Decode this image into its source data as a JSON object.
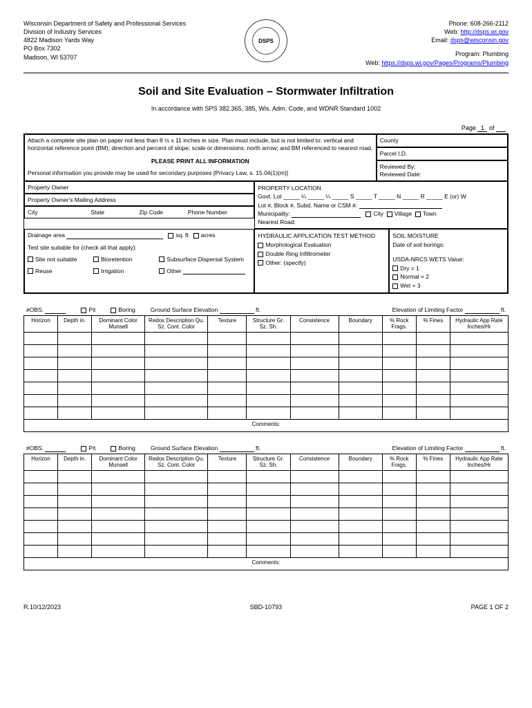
{
  "header": {
    "left": {
      "line1": "Wisconsin Department of Safety and Professional Services",
      "line2": "Division of Industry Services",
      "line3": "4822 Madison Yards Way",
      "line4": "PO Box 7302",
      "line5": "Madison, WI 53707"
    },
    "seal_text": "DSPS",
    "right": {
      "phone_label": "Phone: ",
      "phone": "608-266-2112",
      "web_label": "Web: ",
      "web_url": "http://dsps.wi.gov",
      "email_label": "Email: ",
      "email": "dsps@wisconsin.gov",
      "program_label": "Program: ",
      "program": "Plumbing",
      "program_web_label": "Web: ",
      "program_web_url": "https://dsps.wi.gov/Pages/Programs/Plumbing"
    }
  },
  "title": "Soil and Site Evaluation – Stormwater Infiltration",
  "subtitle": "In accordance with SPS 382.365, 385, Wis. Adm. Code, and WDNR Standard 1002",
  "page_row": {
    "prefix": "Page",
    "current": "1",
    "of": "of"
  },
  "form": {
    "attach_text": "Attach a complete site plan on paper not less than 8 ½ x 11 inches in size. Plan must include, but is not limited to: vertical and horizontal reference point (BM); direction and percent of slope; scale or dimensions; north arrow; and BM referenced to nearest road.",
    "print_bold": "PLEASE PRINT ALL INFORMATION",
    "privacy": "Personal information you provide may be used for secondary purposes [Privacy Law, s. 15.04(1)(m)]",
    "county": "County",
    "parcel": "Parcel I.D.",
    "reviewed_by": "Reviewed By:",
    "reviewed_date": "Reviewed Date:",
    "property_owner": "Property Owner",
    "mailing": "Property Owner's Mailing Address",
    "city": "City",
    "state": "State",
    "zip": "Zip Code",
    "phone": "Phone Number",
    "proploc_title": "PROPERTY LOCATION",
    "govt_lot": "Govt. Lot _____ ¼ _____ ¼ _____ S _____ T _____ N _____ R _____ E (or) W",
    "lot_block": "Lot #, Block #, Subd. Name or CSM #:",
    "municipality": "Municipality:",
    "mun_city": "City",
    "mun_village": "Village",
    "mun_town": "Town",
    "nearest_road": "Nearest Road:",
    "drainage": "Drainage area",
    "sqft": "sq. ft",
    "acres": "acres",
    "suitable": "Test site suitable for (check all that apply):",
    "not_suitable": "Site not suitable",
    "bioretention": "Bioretention",
    "subsurface": "Subsurface Dispersal System",
    "reuse": "Reuse",
    "irrigation": "Irrigation",
    "other": "Other",
    "hydraulic_title": "HYDRAULIC APPLICATION TEST METHOD",
    "morphological": "Morphological Evaluation",
    "double_ring": "Double Ring Infiltrometer",
    "other_specify": "Other: (specify)",
    "soil_moisture_title": "SOIL MOISTURE",
    "date_borings": "Date of soil borings:",
    "usda": "USDA-NRCS WETS Value:",
    "dry": "Dry = 1",
    "normal": "Normal = 2",
    "wet": "Wet = 3"
  },
  "obs": {
    "obs_label": "#OBS.",
    "pit": "Pit",
    "boring": "Boring",
    "gse_label": "Ground Surface Elevation",
    "ft": "ft.",
    "elf_label": "Elevation of Limiting Factor",
    "columns": {
      "horizon": "Horizon",
      "depth": "Depth in.",
      "dominant": "Dominant Color Munsell",
      "redox": "Redox Description Qu. Sz. Cont. Color",
      "texture": "Texture",
      "structure": "Structure Gr. Sz. Sh.",
      "consistence": "Consistence",
      "boundary": "Boundary",
      "rock": "% Rock Frags.",
      "fines": "% Fines",
      "hydraulic": "Hydraulic App Rate Inches/Hr"
    },
    "comments": "Comments:"
  },
  "footer": {
    "left": "R.10/12/2023",
    "center": "SBD-10793",
    "right": "PAGE 1 OF 2"
  },
  "table": {
    "col_widths": [
      "7%",
      "7%",
      "11%",
      "13%",
      "8%",
      "9%",
      "10%",
      "9%",
      "7%",
      "7%",
      "12%"
    ],
    "empty_rows": 7
  }
}
